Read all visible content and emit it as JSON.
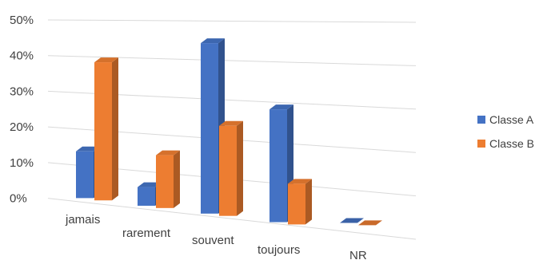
{
  "chart_data": {
    "type": "bar",
    "categories": [
      "jamais",
      "rarement",
      "souvent",
      "toujours",
      "NR"
    ],
    "series": [
      {
        "name": "Classe A",
        "values": [
          13,
          5,
          44,
          28,
          0
        ],
        "color": "#4472C4"
      },
      {
        "name": "Classe B",
        "values": [
          38,
          14,
          23,
          10,
          0
        ],
        "color": "#ED7D31"
      }
    ],
    "ylim": [
      0,
      50
    ],
    "yticks": [
      "0%",
      "10%",
      "20%",
      "30%",
      "40%",
      "50%"
    ],
    "grid": true,
    "legend_position": "right",
    "style": "3d-perspective"
  }
}
